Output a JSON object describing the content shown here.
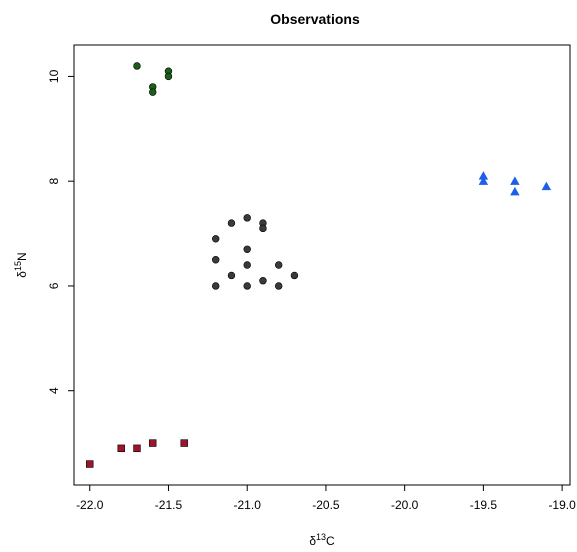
{
  "chart_data": {
    "type": "scatter",
    "title": "Observations",
    "xlabel": {
      "prefix": "δ",
      "sup": "13",
      "suffix": "C"
    },
    "ylabel": {
      "prefix": "δ",
      "sup": "15",
      "suffix": "N"
    },
    "xlim": [
      -22.1,
      -18.95
    ],
    "ylim": [
      2.2,
      10.6
    ],
    "grid": false,
    "x_ticks": [
      -22.0,
      -21.5,
      -21.0,
      -20.5,
      -20.0,
      -19.5,
      -19.0
    ],
    "x_tick_labels": [
      "-22.0",
      "-21.5",
      "-21.0",
      "-20.5",
      "-20.0",
      "-19.5",
      "-19.0"
    ],
    "y_ticks": [
      4,
      6,
      8,
      10
    ],
    "y_tick_labels": [
      "4",
      "6",
      "8",
      "10"
    ],
    "series": [
      {
        "marker": "circle",
        "color": "#1a5e1a",
        "points": [
          [
            -21.7,
            10.2
          ],
          [
            -21.5,
            10.1
          ],
          [
            -21.5,
            10.0
          ],
          [
            -21.6,
            9.8
          ],
          [
            -21.6,
            9.7
          ]
        ]
      },
      {
        "marker": "triangle",
        "color": "#1f5ee8",
        "points": [
          [
            -19.5,
            8.1
          ],
          [
            -19.5,
            8.0
          ],
          [
            -19.3,
            8.0
          ],
          [
            -19.3,
            7.8
          ],
          [
            -19.1,
            7.9
          ]
        ]
      },
      {
        "marker": "circle",
        "color": "#3a3a3a",
        "points": [
          [
            -21.1,
            7.2
          ],
          [
            -21.0,
            7.3
          ],
          [
            -20.9,
            7.2
          ],
          [
            -20.9,
            7.1
          ],
          [
            -21.2,
            6.9
          ],
          [
            -21.0,
            6.7
          ],
          [
            -21.2,
            6.5
          ],
          [
            -21.0,
            6.4
          ],
          [
            -20.8,
            6.4
          ],
          [
            -21.1,
            6.2
          ],
          [
            -20.7,
            6.2
          ],
          [
            -20.9,
            6.1
          ],
          [
            -21.2,
            6.0
          ],
          [
            -21.0,
            6.0
          ],
          [
            -20.8,
            6.0
          ]
        ]
      },
      {
        "marker": "square",
        "color": "#a0132b",
        "points": [
          [
            -22.0,
            2.6
          ],
          [
            -21.8,
            2.9
          ],
          [
            -21.7,
            2.9
          ],
          [
            -21.6,
            3.0
          ],
          [
            -21.4,
            3.0
          ]
        ]
      }
    ]
  }
}
